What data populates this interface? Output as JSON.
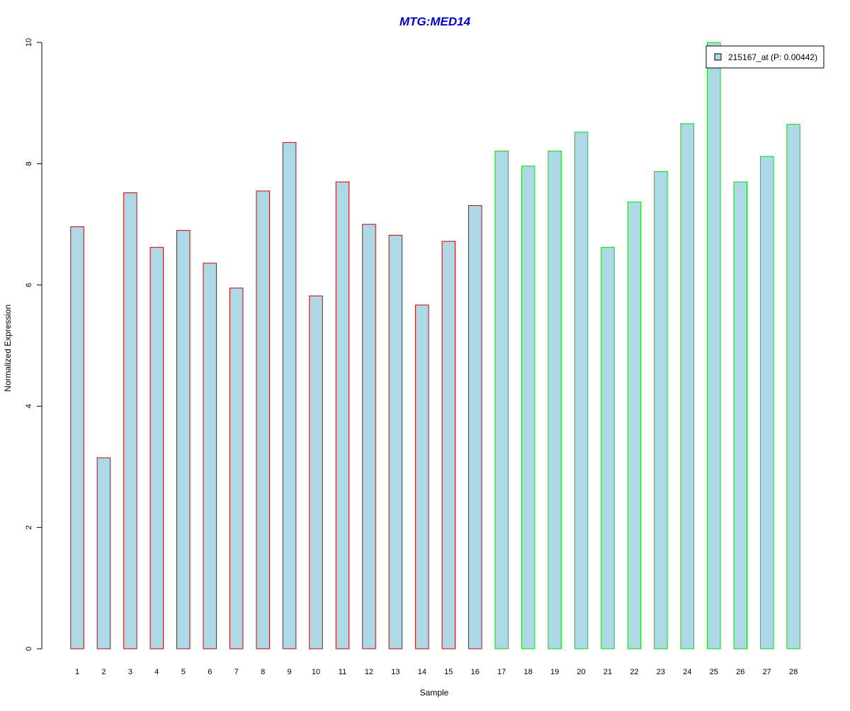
{
  "chart_data": {
    "type": "bar",
    "title": "MTG:MED14",
    "xlabel": "Sample",
    "ylabel": "Normalized Expression",
    "ylim": [
      0,
      10
    ],
    "yticks": [
      0,
      2,
      4,
      6,
      8,
      10
    ],
    "categories": [
      "1",
      "2",
      "3",
      "4",
      "5",
      "6",
      "7",
      "8",
      "9",
      "10",
      "11",
      "12",
      "13",
      "14",
      "15",
      "16",
      "17",
      "18",
      "19",
      "20",
      "21",
      "22",
      "23",
      "24",
      "25",
      "26",
      "27",
      "28"
    ],
    "series": [
      {
        "name": "215167_at (P: 0.00442)",
        "values": [
          6.96,
          3.15,
          7.52,
          6.62,
          6.9,
          6.36,
          5.95,
          7.55,
          8.35,
          5.82,
          7.7,
          7.0,
          6.82,
          5.67,
          6.72,
          7.31,
          8.21,
          7.96,
          8.21,
          8.52,
          6.62,
          7.37,
          7.87,
          8.66,
          10.0,
          7.7,
          8.12,
          8.65
        ]
      }
    ],
    "groups": [
      {
        "from": 1,
        "to": 16,
        "outline_color": "#cc0000"
      },
      {
        "from": 17,
        "to": 28,
        "outline_color": "#00dd00"
      }
    ],
    "bar_fill": "#add8e6",
    "title_color": "#0000cc",
    "legend_position": "top-right",
    "grid": false
  }
}
